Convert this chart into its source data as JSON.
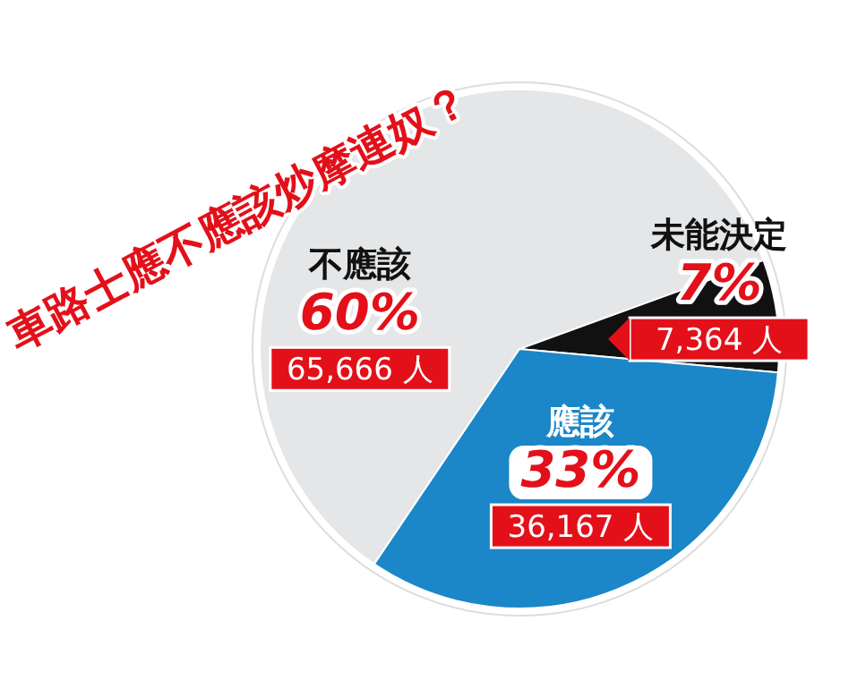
{
  "chart_data": {
    "type": "pie",
    "title": "車路士應不應該炒摩連奴？",
    "categories": [
      "不應該",
      "未能決定",
      "應該"
    ],
    "values": [
      60,
      7,
      33
    ],
    "colors": [
      "#e4e6e8",
      "#111111",
      "#1b86c8"
    ],
    "value_labels": [
      "60%",
      "7%",
      "33%"
    ],
    "annotations": [
      {
        "text": "65,666 人",
        "x": "不應該"
      },
      {
        "text": "7,364 人",
        "x": "未能決定"
      },
      {
        "text": "36,167 人",
        "x": "應該"
      }
    ]
  }
}
